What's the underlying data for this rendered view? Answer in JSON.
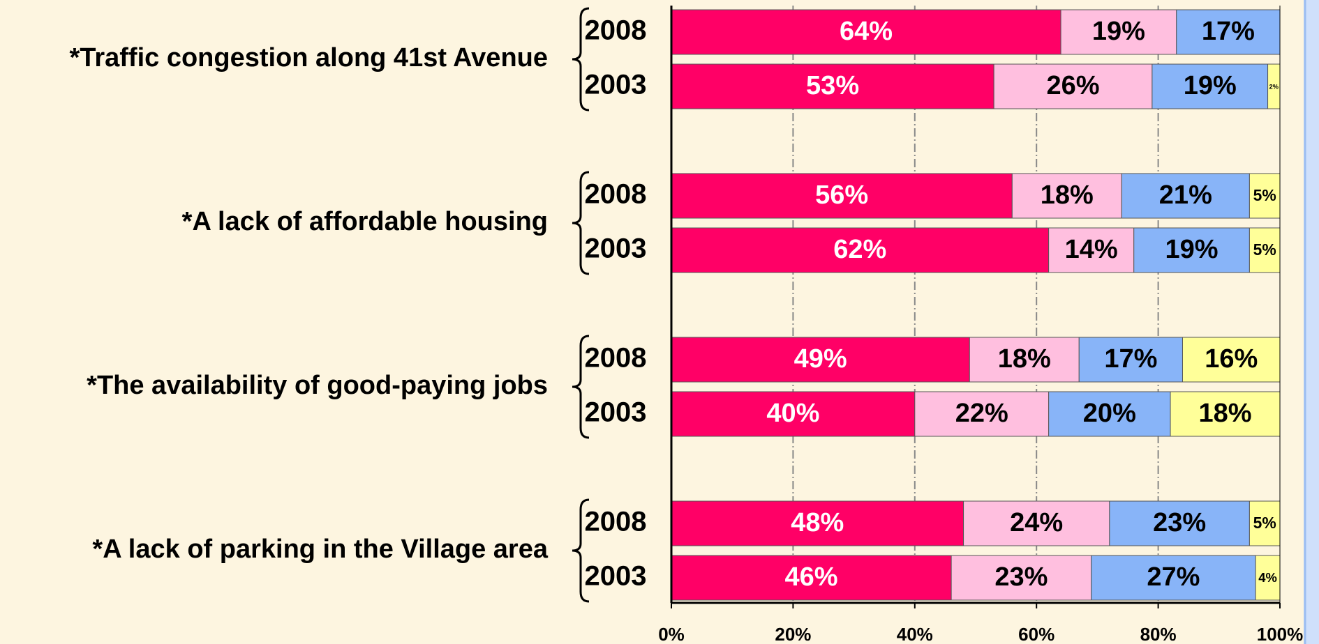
{
  "chart_data": {
    "type": "stacked-bar-horizontal",
    "groups": [
      "*Traffic congestion along 41st Avenue",
      "*A lack of affordable housing",
      "*The availability of good-paying jobs",
      "*A lack of parking in the Village area"
    ],
    "categories": [
      "2008",
      "2003",
      "2008",
      "2003",
      "2008",
      "2003",
      "2008",
      "2003"
    ],
    "series": [
      {
        "color": "#ff0066",
        "label_color": "#ffffff",
        "values": [
          64,
          53,
          56,
          62,
          49,
          40,
          48,
          46
        ],
        "value_labels": [
          "64%",
          "53%",
          "56%",
          "62%",
          "49%",
          "40%",
          "48%",
          "46%"
        ]
      },
      {
        "color": "#ffbfdf",
        "label_color": "#000000",
        "values": [
          19,
          26,
          18,
          14,
          18,
          22,
          24,
          23
        ],
        "value_labels": [
          "19%",
          "26%",
          "18%",
          "14%",
          "18%",
          "22%",
          "24%",
          "23%"
        ]
      },
      {
        "color": "#88b4f8",
        "label_color": "#000000",
        "values": [
          17,
          19,
          21,
          19,
          17,
          20,
          23,
          27
        ],
        "value_labels": [
          "17%",
          "19%",
          "21%",
          "19%",
          "17%",
          "20%",
          "23%",
          "27%"
        ]
      },
      {
        "color": "#ffff99",
        "label_color": "#000000",
        "values": [
          null,
          2,
          5,
          5,
          16,
          18,
          5,
          4
        ],
        "value_labels": [
          null,
          "2%",
          "5%",
          "5%",
          "16%",
          "18%",
          "5%",
          "4%"
        ]
      }
    ],
    "xlim": [
      0,
      100
    ],
    "xticks": [
      {
        "value": 0,
        "label": "0%"
      },
      {
        "value": 20,
        "label": "20%"
      },
      {
        "value": 40,
        "label": "40%"
      },
      {
        "value": 60,
        "label": "60%"
      },
      {
        "value": 80,
        "label": "80%"
      },
      {
        "value": 100,
        "label": "100%"
      }
    ],
    "grid": true
  }
}
